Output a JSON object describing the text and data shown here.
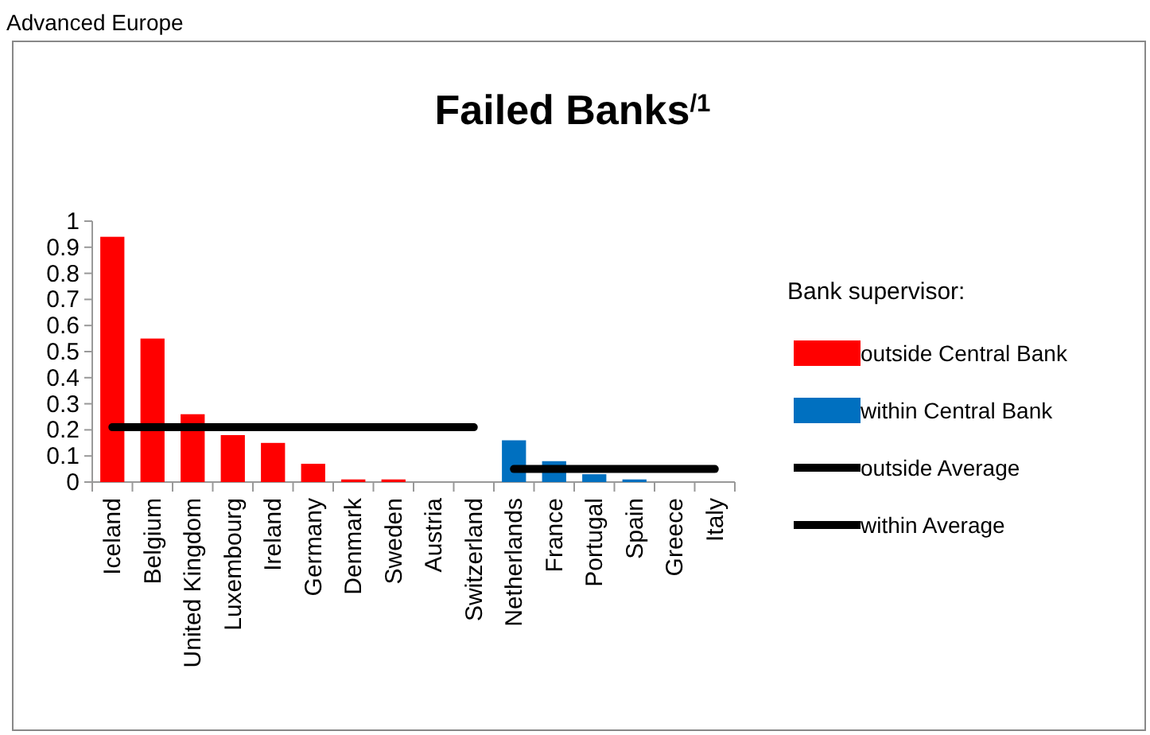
{
  "chart_data": {
    "type": "bar",
    "title": "Failed Banks$^{/1}$",
    "annotations": [
      "Advanced Europe"
    ],
    "legend_title": "Bank supervisor:",
    "categories": [
      "Iceland",
      "Belgium",
      "United Kingdom",
      "Luxembourg",
      "Ireland",
      "Germany",
      "Denmark",
      "Sweden",
      "Austria",
      "Switzerland",
      "Netherlands",
      "France",
      "Portugal",
      "Spain",
      "Greece",
      "Italy"
    ],
    "series": [
      {
        "name": "outside Central Bank",
        "color": "#ff0000",
        "values": [
          0.94,
          0.55,
          0.26,
          0.18,
          0.15,
          0.07,
          0.01,
          0.01,
          0,
          0,
          null,
          null,
          null,
          null,
          null,
          null
        ]
      },
      {
        "name": "within Central Bank",
        "color": "#0070c0",
        "values": [
          null,
          null,
          null,
          null,
          null,
          null,
          null,
          null,
          null,
          null,
          0.16,
          0.08,
          0.03,
          0.01,
          0,
          0
        ]
      },
      {
        "name": "outside Average",
        "type": "line",
        "color": "#000000",
        "values": [
          0.21,
          0.21,
          0.21,
          0.21,
          0.21,
          0.21,
          0.21,
          0.21,
          0.21,
          0.21,
          null,
          null,
          null,
          null,
          null,
          null
        ]
      },
      {
        "name": "within Average",
        "type": "line",
        "color": "#000000",
        "values": [
          null,
          null,
          null,
          null,
          null,
          null,
          null,
          null,
          null,
          null,
          0.05,
          0.05,
          0.05,
          0.05,
          0.05,
          0.05
        ]
      }
    ],
    "ylim": [
      0,
      1
    ],
    "yticks": [
      0,
      0.1,
      0.2,
      0.3,
      0.4,
      0.5,
      0.6,
      0.7,
      0.8,
      0.9,
      1
    ],
    "grid": false,
    "legend": "right"
  }
}
